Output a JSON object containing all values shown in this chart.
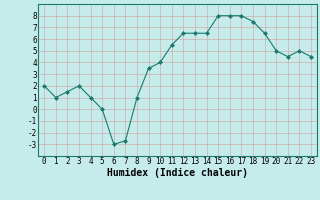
{
  "x": [
    0,
    1,
    2,
    3,
    4,
    5,
    6,
    7,
    8,
    9,
    10,
    11,
    12,
    13,
    14,
    15,
    16,
    17,
    18,
    19,
    20,
    21,
    22,
    23
  ],
  "y": [
    2,
    1,
    1.5,
    2,
    1,
    0,
    -3,
    -2.7,
    1,
    3.5,
    4,
    5.5,
    6.5,
    6.5,
    6.5,
    8,
    8,
    8,
    7.5,
    6.5,
    5,
    4.5,
    5,
    4.5
  ],
  "line_color": "#1a7a6e",
  "marker": "D",
  "marker_size": 2.0,
  "bg_color": "#c5ecea",
  "grid_color": "#b0d8d4",
  "xlabel": "Humidex (Indice chaleur)",
  "xlim": [
    -0.5,
    23.5
  ],
  "ylim": [
    -4,
    9
  ],
  "yticks": [
    -3,
    -2,
    -1,
    0,
    1,
    2,
    3,
    4,
    5,
    6,
    7,
    8
  ],
  "xticks": [
    0,
    1,
    2,
    3,
    4,
    5,
    6,
    7,
    8,
    9,
    10,
    11,
    12,
    13,
    14,
    15,
    16,
    17,
    18,
    19,
    20,
    21,
    22,
    23
  ],
  "tick_fontsize": 5.5,
  "xlabel_fontsize": 7.0
}
